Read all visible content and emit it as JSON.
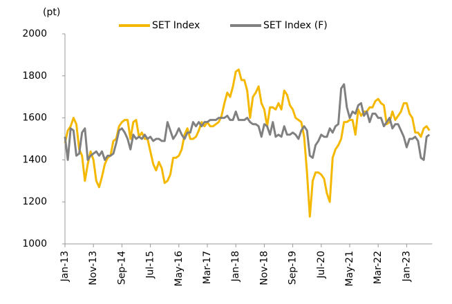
{
  "chart_data": {
    "type": "line",
    "y_axis_label": "(pt)",
    "categories": [
      "Jan-13",
      null,
      null,
      null,
      null,
      null,
      null,
      null,
      null,
      null,
      "Nov-13",
      null,
      null,
      null,
      null,
      null,
      null,
      null,
      null,
      null,
      "Sep-14",
      null,
      null,
      null,
      null,
      null,
      null,
      null,
      null,
      null,
      "Jul-15",
      null,
      null,
      null,
      null,
      null,
      null,
      null,
      null,
      null,
      "May-16",
      null,
      null,
      null,
      null,
      null,
      null,
      null,
      null,
      null,
      "Mar-17",
      null,
      null,
      null,
      null,
      null,
      null,
      null,
      null,
      null,
      "Jan-18",
      null,
      null,
      null,
      null,
      null,
      null,
      null,
      null,
      null,
      "Nov-18",
      null,
      null,
      null,
      null,
      null,
      null,
      null,
      null,
      null,
      "Sep-19",
      null,
      null,
      null,
      null,
      null,
      null,
      null,
      null,
      null,
      "Jul-20",
      null,
      null,
      null,
      null,
      null,
      null,
      null,
      null,
      null,
      "May-21",
      null,
      null,
      null,
      null,
      null,
      null,
      null,
      null,
      null,
      "Mar-22",
      null,
      null,
      null,
      null,
      null,
      null,
      null,
      null,
      null,
      "Jan-23",
      null,
      null,
      null,
      null,
      null,
      null,
      null,
      null
    ],
    "series": [
      {
        "name": "SET Index",
        "color": "#f5b800",
        "values": [
          1480,
          1540,
          1560,
          1600,
          1570,
          1450,
          1420,
          1300,
          1380,
          1440,
          1400,
          1300,
          1270,
          1320,
          1380,
          1410,
          1420,
          1490,
          1500,
          1560,
          1580,
          1590,
          1590,
          1500,
          1580,
          1590,
          1510,
          1530,
          1500,
          1500,
          1440,
          1380,
          1350,
          1390,
          1360,
          1290,
          1300,
          1330,
          1410,
          1410,
          1420,
          1450,
          1520,
          1550,
          1500,
          1500,
          1510,
          1540,
          1580,
          1560,
          1580,
          1560,
          1560,
          1570,
          1580,
          1610,
          1670,
          1720,
          1700,
          1750,
          1820,
          1830,
          1780,
          1780,
          1730,
          1600,
          1700,
          1720,
          1750,
          1670,
          1640,
          1560,
          1650,
          1650,
          1640,
          1670,
          1640,
          1730,
          1710,
          1660,
          1640,
          1600,
          1590,
          1580,
          1510,
          1340,
          1130,
          1300,
          1340,
          1340,
          1330,
          1310,
          1240,
          1200,
          1410,
          1450,
          1470,
          1500,
          1580,
          1580,
          1590,
          1590,
          1520,
          1640,
          1610,
          1630,
          1630,
          1650,
          1650,
          1680,
          1690,
          1670,
          1660,
          1570,
          1580,
          1630,
          1590,
          1610,
          1630,
          1670,
          1670,
          1620,
          1600,
          1530,
          1530,
          1510,
          1550,
          1560,
          1540
        ]
      },
      {
        "name": "SET Index (F)",
        "color": "#808080",
        "values": [
          1510,
          1400,
          1550,
          1540,
          1420,
          1430,
          1530,
          1550,
          1400,
          1420,
          1430,
          1440,
          1420,
          1440,
          1400,
          1420,
          1420,
          1430,
          1480,
          1540,
          1550,
          1530,
          1500,
          1450,
          1520,
          1500,
          1510,
          1500,
          1520,
          1500,
          1510,
          1490,
          1500,
          1500,
          1490,
          1490,
          1580,
          1540,
          1500,
          1520,
          1550,
          1520,
          1500,
          1530,
          1530,
          1580,
          1560,
          1580,
          1560,
          1580,
          1580,
          1590,
          1590,
          1590,
          1600,
          1600,
          1600,
          1610,
          1590,
          1590,
          1630,
          1590,
          1590,
          1590,
          1600,
          1580,
          1570,
          1570,
          1560,
          1510,
          1570,
          1560,
          1520,
          1580,
          1510,
          1520,
          1510,
          1560,
          1520,
          1520,
          1530,
          1520,
          1500,
          1540,
          1560,
          1540,
          1420,
          1410,
          1470,
          1490,
          1520,
          1510,
          1510,
          1550,
          1530,
          1560,
          1570,
          1740,
          1760,
          1650,
          1600,
          1630,
          1620,
          1660,
          1670,
          1610,
          1630,
          1580,
          1620,
          1620,
          1600,
          1600,
          1560,
          1580,
          1600,
          1550,
          1570,
          1570,
          1540,
          1510,
          1460,
          1500,
          1500,
          1510,
          1490,
          1410,
          1400,
          1510,
          1520
        ]
      }
    ],
    "ylim": [
      1000,
      2000
    ],
    "yticks": [
      1000,
      1200,
      1400,
      1600,
      1800,
      2000
    ],
    "legend": "top"
  }
}
